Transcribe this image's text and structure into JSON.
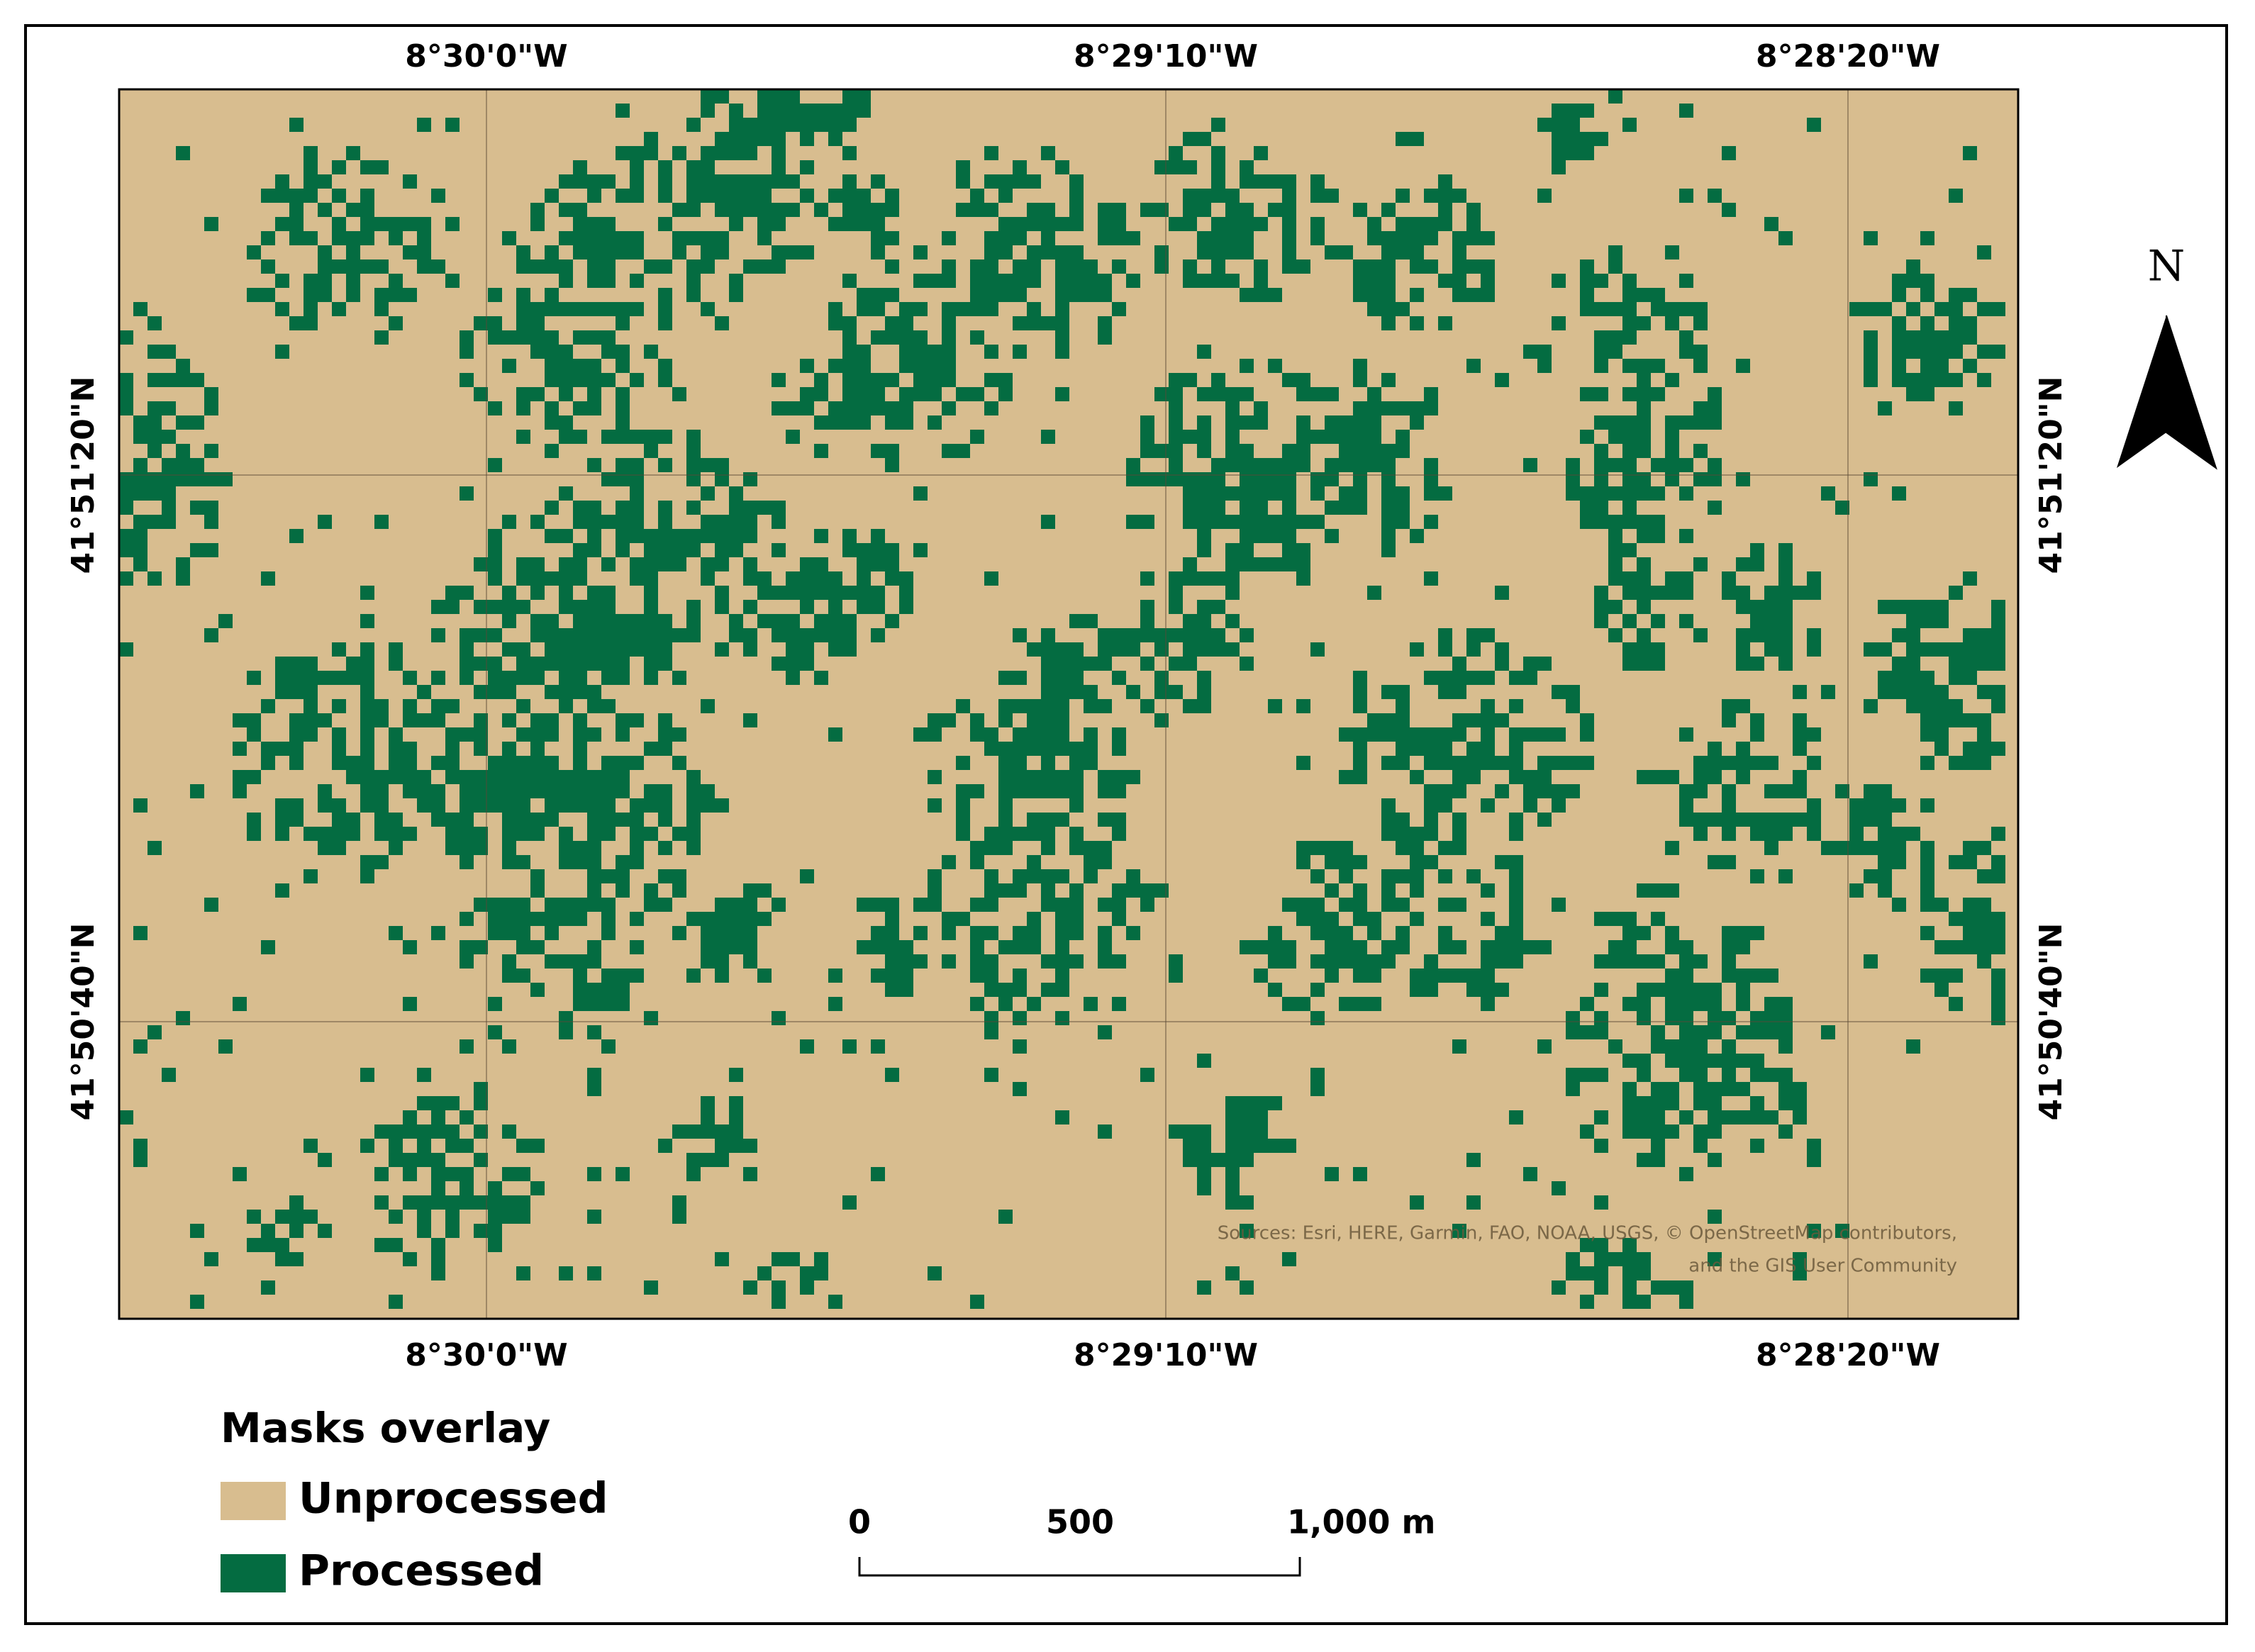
{
  "map": {
    "top_labels": [
      "8°30'0\"W",
      "8°29'10\"W",
      "8°28'20\"W"
    ],
    "bottom_labels": [
      "8°30'0\"W",
      "8°29'10\"W",
      "8°28'20\"W"
    ],
    "left_labels": [
      "41°51'20\"N",
      "41°50'40\"N"
    ],
    "right_labels": [
      "41°51'20\"N",
      "41°50'40\"N"
    ],
    "north": "N",
    "attribution": [
      "Sources: Esri, HERE, Garmin, FAO, NOAA, USGS, © OpenStreetMap contributors,",
      "and the GIS User Community"
    ]
  },
  "legend": {
    "title": "Masks overlay",
    "items": [
      {
        "label": "Unprocessed",
        "color": "#d8bd8f"
      },
      {
        "label": "Processed",
        "color": "#046c41"
      }
    ]
  },
  "scale_bar": {
    "labels": [
      "0",
      "500",
      "1,000 m"
    ]
  }
}
